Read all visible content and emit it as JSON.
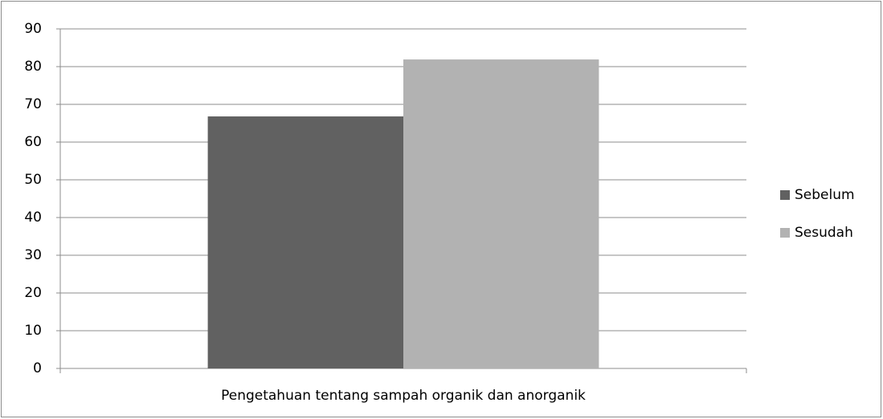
{
  "chart_data": {
    "type": "bar",
    "categories": [
      "Pengetahuan tentang sampah organik dan anorganik"
    ],
    "series": [
      {
        "name": "Sebelum",
        "color": "#616161",
        "values": [
          66.8
        ]
      },
      {
        "name": "Sesudah",
        "color": "#b2b2b2",
        "values": [
          81.9
        ]
      }
    ],
    "ylim": [
      0,
      90
    ],
    "yticks": [
      0,
      10,
      20,
      30,
      40,
      50,
      60,
      70,
      80,
      90
    ],
    "grid": true,
    "legend": "right"
  }
}
